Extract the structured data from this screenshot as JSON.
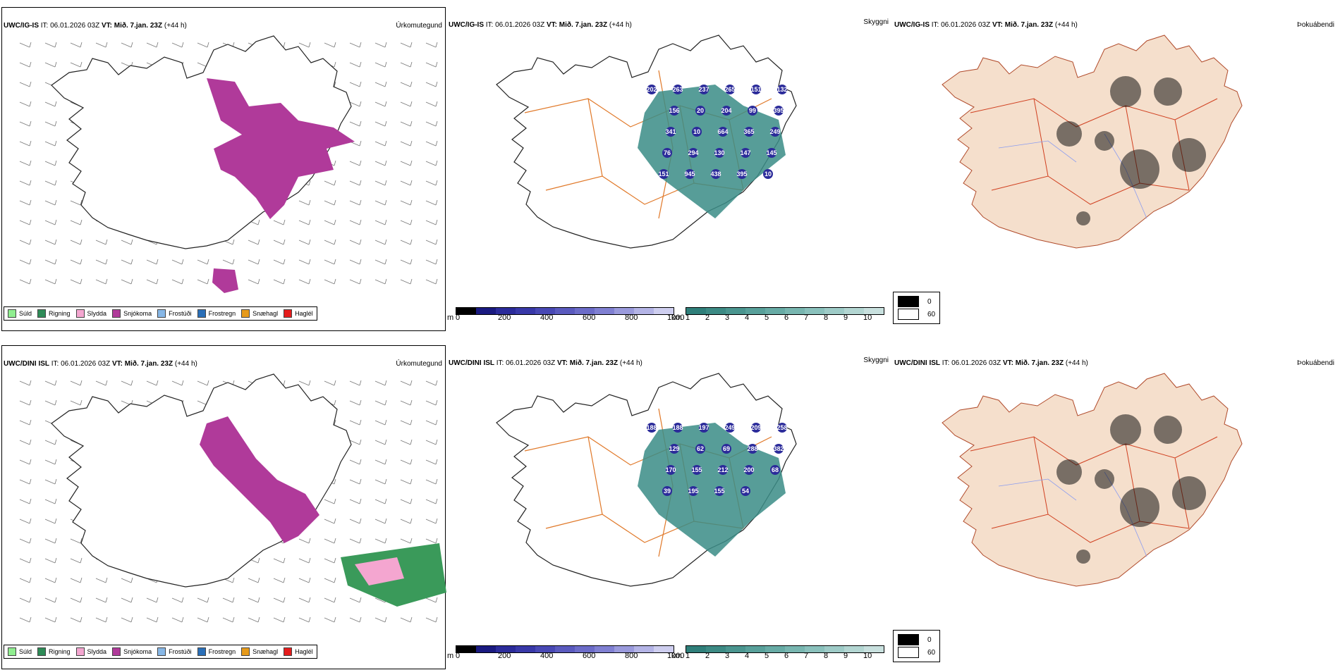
{
  "panels": {
    "top_left": {
      "model": "UWC/IG-IS",
      "it_label": "IT:",
      "it_value": "06.01.2026 03Z",
      "vt_label": "VT:",
      "vt_value": "Mið. 7.jan. 23Z",
      "lead": "(+44 h)",
      "title": "Úrkomutegund"
    },
    "top_mid": {
      "model": "UWC/IG-IS",
      "it_label": "IT:",
      "it_value": "06.01.2026 03Z",
      "vt_label": "VT:",
      "vt_value": "Mið. 7.jan. 23Z",
      "lead": "(+44 h)",
      "title": "Skyggni"
    },
    "top_right": {
      "model": "UWC/IG-IS",
      "it_label": "IT:",
      "it_value": "06.01.2026 03Z",
      "vt_label": "VT:",
      "vt_value": "Mið. 7.jan. 23Z",
      "lead": "(+44 h)",
      "title": "Þokuábendi"
    },
    "bot_left": {
      "model": "UWC/DINI ISL",
      "it_label": "IT:",
      "it_value": "06.01.2026 03Z",
      "vt_label": "VT:",
      "vt_value": "Mið. 7.jan. 23Z",
      "lead": "(+44 h)",
      "title": "Úrkomutegund"
    },
    "bot_mid": {
      "model": "UWC/DINI ISL",
      "it_label": "IT:",
      "it_value": "06.01.2026 03Z",
      "vt_label": "VT:",
      "vt_value": "Mið. 7.jan. 23Z",
      "lead": "(+44 h)",
      "title": "Skyggni"
    },
    "bot_right": {
      "model": "UWC/DINI ISL",
      "it_label": "IT:",
      "it_value": "06.01.2026 03Z",
      "vt_label": "VT:",
      "vt_value": "Mið. 7.jan. 23Z",
      "lead": "(+44 h)",
      "title": "Þokuábendi"
    }
  },
  "precip_legend": [
    {
      "label": "Súld",
      "color": "#90ee90"
    },
    {
      "label": "Rigning",
      "color": "#2e8b57"
    },
    {
      "label": "Slydda",
      "color": "#f4a6d0"
    },
    {
      "label": "Snjókoma",
      "color": "#b03a9a"
    },
    {
      "label": "Frostúði",
      "color": "#87b7e6"
    },
    {
      "label": "Frostregn",
      "color": "#2a6fb8"
    },
    {
      "label": "Snæhagl",
      "color": "#e69a1a"
    },
    {
      "label": "Haglél",
      "color": "#e51c1c"
    }
  ],
  "vis_colorbar": {
    "m_unit": "m",
    "m_ticks": [
      "0",
      "200",
      "400",
      "600",
      "800",
      "1000"
    ],
    "km_unit": "km",
    "km_ticks": [
      "1",
      "2",
      "3",
      "4",
      "5",
      "6",
      "7",
      "8",
      "9",
      "10"
    ],
    "m_colors": [
      "#000000",
      "#1a1a80",
      "#2b2b9a",
      "#3838a8",
      "#4848b4",
      "#5a5abe",
      "#6c6cc8",
      "#8080d2",
      "#9a9adc",
      "#b4b4e6",
      "#ceceef"
    ],
    "km_colors": [
      "#2f7f7a",
      "#3c8a84",
      "#4a958f",
      "#58a09a",
      "#67aba5",
      "#78b6b0",
      "#8ac1bc",
      "#9ecbc7",
      "#b3d6d2",
      "#c8e0de"
    ]
  },
  "fog_mask": {
    "values": [
      "0",
      "60"
    ]
  },
  "vis_labels_top": [
    "202",
    "263",
    "237",
    "265",
    "151",
    "132",
    "156",
    "20",
    "204",
    "99",
    "395",
    "341",
    "10",
    "664",
    "365",
    "249",
    "76",
    "294",
    "130",
    "147",
    "145",
    "151",
    "945",
    "438",
    "395",
    "10"
  ],
  "vis_labels_bot": [
    "188",
    "188",
    "197",
    "249",
    "209",
    "258",
    "129",
    "62",
    "69",
    "288",
    "382",
    "170",
    "155",
    "212",
    "200",
    "68",
    "39",
    "195",
    "155",
    "54"
  ],
  "colors": {
    "coast": "#333333",
    "roads": "#e07828",
    "roads_dark": "#d04020",
    "land_fog": "#f5dfcc",
    "snow": "#b03a9a",
    "vis_green": "#3a8c86",
    "vis_blue": "#2b2b9a"
  }
}
